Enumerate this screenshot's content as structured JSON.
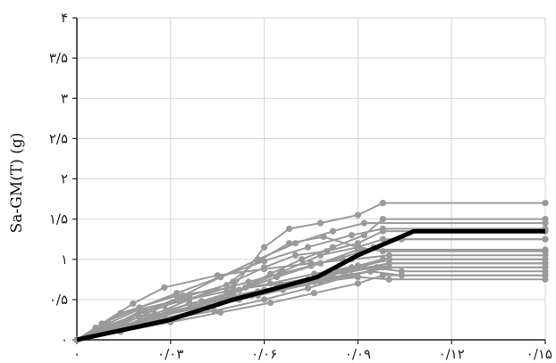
{
  "chart_data": {
    "type": "line",
    "title": "",
    "xlabel": "",
    "ylabel": "Sa-GM(T) (g)",
    "xlim": [
      0,
      0.15
    ],
    "ylim": [
      0,
      4
    ],
    "grid": true,
    "x_ticks": [
      {
        "value": 0,
        "label": "۰"
      },
      {
        "value": 0.03,
        "label": "۰/۰۳"
      },
      {
        "value": 0.06,
        "label": "۰/۰۶"
      },
      {
        "value": 0.09,
        "label": "۰/۰۹"
      },
      {
        "value": 0.12,
        "label": "۰/۱۲"
      },
      {
        "value": 0.15,
        "label": "۰/۱۵"
      }
    ],
    "y_ticks": [
      {
        "value": 0,
        "label": "۰"
      },
      {
        "value": 0.5,
        "label": "۰/۵"
      },
      {
        "value": 1,
        "label": "۱"
      },
      {
        "value": 1.5,
        "label": "۱/۵"
      },
      {
        "value": 2,
        "label": "۲"
      },
      {
        "value": 2.5,
        "label": "۲/۵"
      },
      {
        "value": 3,
        "label": "۳"
      },
      {
        "value": 3.5,
        "label": "۳/۵"
      },
      {
        "value": 4,
        "label": "۴"
      }
    ],
    "colors": {
      "records": "#9a9a9a",
      "mean": "#000000",
      "grid": "#d6d6d6",
      "axis": "#222222"
    },
    "series": [
      {
        "x": [
          0,
          0.01,
          0.02,
          0.033,
          0.05,
          0.065,
          0.08,
          0.096,
          0.1,
          0.15
        ],
        "y": [
          0,
          0.15,
          0.35,
          0.48,
          0.62,
          0.7,
          0.8,
          0.9,
          0.95,
          0.95
        ]
      },
      {
        "x": [
          0,
          0.008,
          0.018,
          0.028,
          0.045,
          0.06,
          0.075,
          0.088,
          0.1,
          0.15
        ],
        "y": [
          0,
          0.2,
          0.45,
          0.65,
          0.8,
          0.88,
          0.95,
          1.0,
          1.05,
          1.05
        ]
      },
      {
        "x": [
          0,
          0.012,
          0.024,
          0.04,
          0.058,
          0.072,
          0.085,
          0.1,
          0.15
        ],
        "y": [
          0,
          0.12,
          0.28,
          0.4,
          0.55,
          0.7,
          0.85,
          1.0,
          1.0
        ]
      },
      {
        "x": [
          0,
          0.006,
          0.014,
          0.032,
          0.05,
          0.06,
          0.068,
          0.078,
          0.09,
          0.098,
          0.15
        ],
        "y": [
          0,
          0.15,
          0.33,
          0.55,
          0.65,
          1.15,
          1.38,
          1.45,
          1.55,
          1.7,
          1.7
        ]
      },
      {
        "x": [
          0,
          0.008,
          0.02,
          0.04,
          0.052,
          0.062,
          0.072,
          0.082,
          0.092,
          0.098,
          0.15
        ],
        "y": [
          0,
          0.14,
          0.28,
          0.48,
          0.62,
          0.82,
          1.0,
          1.15,
          1.3,
          1.5,
          1.5
        ]
      },
      {
        "x": [
          0,
          0.01,
          0.022,
          0.036,
          0.048,
          0.058,
          0.068,
          0.079,
          0.09,
          0.098,
          0.15
        ],
        "y": [
          0,
          0.18,
          0.35,
          0.55,
          0.68,
          0.98,
          1.2,
          1.28,
          1.15,
          1.25,
          1.25
        ]
      },
      {
        "x": [
          0,
          0.012,
          0.025,
          0.036,
          0.05,
          0.06,
          0.07,
          0.08,
          0.09,
          0.098,
          0.15
        ],
        "y": [
          0,
          0.13,
          0.32,
          0.5,
          0.72,
          0.9,
          1.05,
          1.1,
          1.2,
          1.35,
          1.35
        ]
      },
      {
        "x": [
          0,
          0.015,
          0.028,
          0.042,
          0.055,
          0.065,
          0.075,
          0.085,
          0.095,
          0.104,
          0.15
        ],
        "y": [
          0,
          0.2,
          0.42,
          0.58,
          0.72,
          0.82,
          0.92,
          1.02,
          1.15,
          1.25,
          1.25
        ]
      },
      {
        "x": [
          0,
          0.01,
          0.025,
          0.038,
          0.052,
          0.066,
          0.078,
          0.09,
          0.1,
          0.15
        ],
        "y": [
          0,
          0.1,
          0.22,
          0.35,
          0.5,
          0.62,
          0.72,
          0.78,
          0.75,
          0.75
        ]
      },
      {
        "x": [
          0,
          0.012,
          0.026,
          0.042,
          0.056,
          0.07,
          0.082,
          0.094,
          0.104,
          0.15
        ],
        "y": [
          0,
          0.12,
          0.25,
          0.4,
          0.55,
          0.68,
          0.78,
          0.85,
          0.8,
          0.8
        ]
      },
      {
        "x": [
          0,
          0.014,
          0.028,
          0.042,
          0.058,
          0.072,
          0.086,
          0.1,
          0.15
        ],
        "y": [
          0,
          0.15,
          0.3,
          0.45,
          0.6,
          0.72,
          0.85,
          0.95,
          0.95
        ]
      },
      {
        "x": [
          0,
          0.01,
          0.02,
          0.034,
          0.048,
          0.062,
          0.076,
          0.09,
          0.104,
          0.15
        ],
        "y": [
          0,
          0.2,
          0.38,
          0.5,
          0.6,
          0.7,
          0.82,
          0.92,
          0.85,
          0.85
        ]
      },
      {
        "x": [
          0,
          0.012,
          0.026,
          0.04,
          0.054,
          0.066,
          0.078,
          0.09,
          0.098,
          0.15
        ],
        "y": [
          0,
          0.14,
          0.3,
          0.45,
          0.65,
          0.85,
          1.05,
          1.15,
          1.1,
          1.1
        ]
      },
      {
        "x": [
          0,
          0.016,
          0.03,
          0.046,
          0.06,
          0.074,
          0.088,
          0.098,
          0.15
        ],
        "y": [
          0,
          0.18,
          0.35,
          0.5,
          0.62,
          0.75,
          0.9,
          1.0,
          1.0
        ]
      },
      {
        "x": [
          0,
          0.01,
          0.024,
          0.036,
          0.05,
          0.064,
          0.076,
          0.088,
          0.098,
          0.15
        ],
        "y": [
          0,
          0.12,
          0.28,
          0.45,
          0.55,
          0.65,
          0.72,
          0.8,
          0.9,
          0.9
        ]
      },
      {
        "x": [
          0,
          0.01,
          0.022,
          0.034,
          0.046,
          0.058,
          0.07,
          0.082,
          0.092,
          0.15
        ],
        "y": [
          0,
          0.15,
          0.35,
          0.55,
          0.78,
          1.0,
          1.2,
          1.35,
          1.45,
          1.45
        ]
      },
      {
        "x": [
          0,
          0.008,
          0.02,
          0.032,
          0.046,
          0.06,
          0.074,
          0.088,
          0.098,
          0.15
        ],
        "y": [
          0,
          0.2,
          0.4,
          0.58,
          0.78,
          0.98,
          1.15,
          1.3,
          1.38,
          1.38
        ]
      },
      {
        "x": [
          0,
          0.012,
          0.024,
          0.038,
          0.05,
          0.064,
          0.078,
          0.09,
          0.15
        ],
        "y": [
          0,
          0.14,
          0.28,
          0.42,
          0.58,
          0.78,
          0.95,
          1.12,
          1.12
        ]
      },
      {
        "x": [
          0,
          0.014,
          0.03,
          0.046,
          0.062,
          0.076,
          0.09,
          0.098,
          0.15
        ],
        "y": [
          0,
          0.1,
          0.22,
          0.34,
          0.46,
          0.58,
          0.7,
          0.8,
          0.8
        ]
      },
      {
        "x": [
          0,
          0.01,
          0.026,
          0.044,
          0.06,
          0.074,
          0.088,
          0.1,
          0.15
        ],
        "y": [
          0,
          0.12,
          0.24,
          0.36,
          0.5,
          0.64,
          0.8,
          0.9,
          0.9
        ]
      }
    ],
    "mean": {
      "x": [
        0,
        0.03,
        0.05,
        0.06,
        0.077,
        0.09,
        0.108,
        0.15
      ],
      "y": [
        0,
        0.25,
        0.5,
        0.6,
        0.78,
        1.05,
        1.35,
        1.35
      ]
    }
  }
}
